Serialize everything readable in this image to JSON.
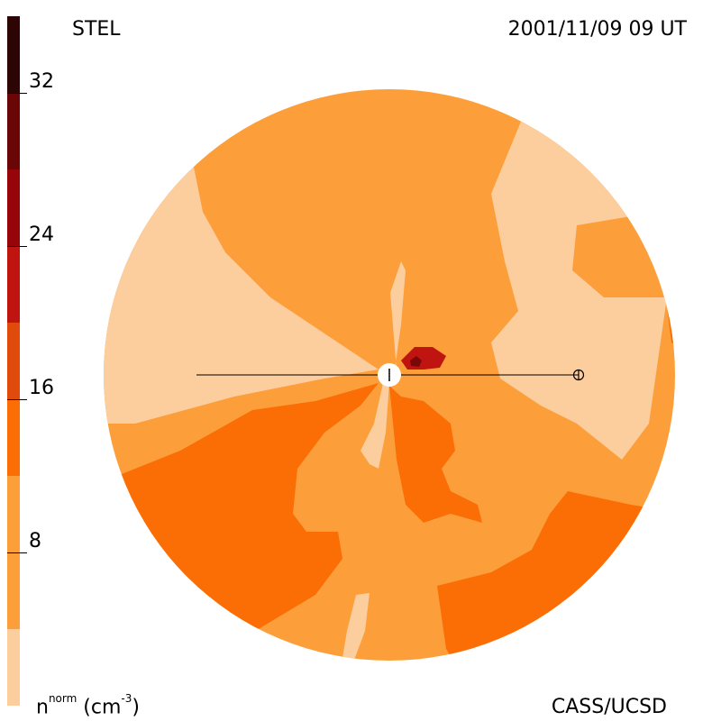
{
  "header": {
    "left_label": "STEL",
    "right_label": "2001/11/09 09 UT"
  },
  "footer": {
    "credit": "CASS/UCSD",
    "colorbar_title": {
      "symbol": "n",
      "superscript": "norm",
      "units_open": " (cm",
      "units_sup": "-3",
      "units_close": ")"
    }
  },
  "colorbar": {
    "vmin": 0,
    "vmax": 36,
    "ticks": [
      "8",
      "16",
      "24",
      "32"
    ],
    "tick_values": [
      8,
      16,
      24,
      32
    ],
    "levels": [
      {
        "from": 0,
        "to": 4,
        "color": "#fccd9d"
      },
      {
        "from": 4,
        "to": 12,
        "color": "#fc9e3a"
      },
      {
        "from": 12,
        "to": 16,
        "color": "#fb6e06"
      },
      {
        "from": 16,
        "to": 20,
        "color": "#e04a0b"
      },
      {
        "from": 20,
        "to": 24,
        "color": "#bf1410"
      },
      {
        "from": 24,
        "to": 28,
        "color": "#95050a"
      },
      {
        "from": 28,
        "to": 32,
        "color": "#6b0607"
      },
      {
        "from": 32,
        "to": 36,
        "color": "#2d0505"
      }
    ]
  },
  "colors": {
    "lightest": "#fccd9d",
    "light": "#fc9e3a",
    "medium": "#fb6e06",
    "dark": "#bf1410",
    "darkest": "#7a0808"
  }
}
